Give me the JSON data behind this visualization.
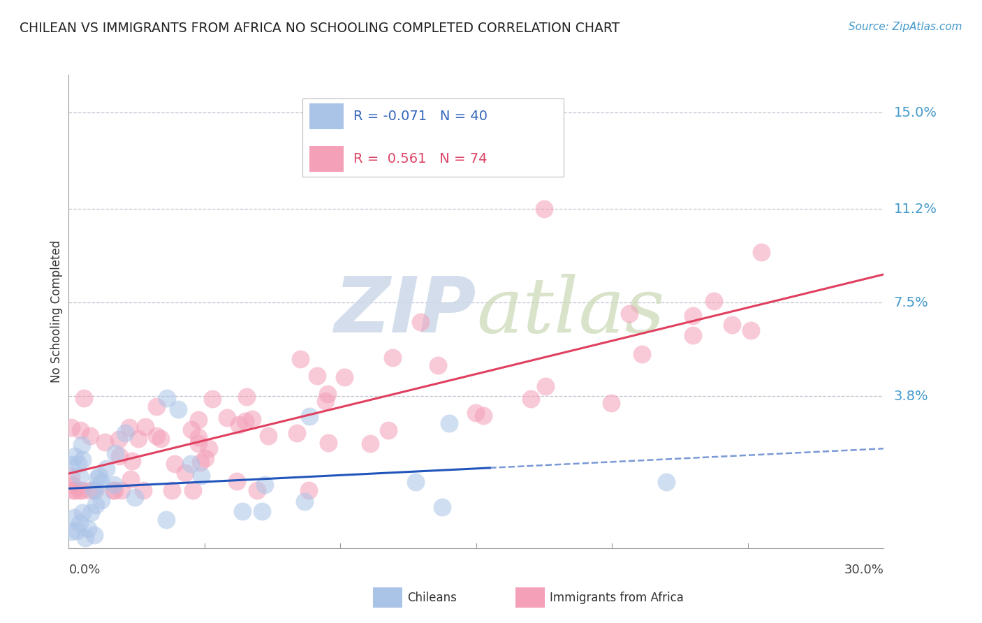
{
  "title": "CHILEAN VS IMMIGRANTS FROM AFRICA NO SCHOOLING COMPLETED CORRELATION CHART",
  "source": "Source: ZipAtlas.com",
  "ylabel": "No Schooling Completed",
  "ytick_labels": [
    "15.0%",
    "11.2%",
    "7.5%",
    "3.8%"
  ],
  "ytick_values": [
    0.15,
    0.112,
    0.075,
    0.038
  ],
  "xmin": 0.0,
  "xmax": 0.3,
  "ymin": -0.022,
  "ymax": 0.165,
  "chilean_color": "#aac4e8",
  "africa_color": "#f4a0b8",
  "chilean_line_color": "#2255bb",
  "africa_line_color": "#e04060",
  "chilean_r": -0.071,
  "africa_r": 0.561,
  "chilean_n": 40,
  "africa_n": 74,
  "background_color": "#ffffff",
  "grid_color": "#bbbbcc",
  "watermark_zip_color": "#ccd8e8",
  "watermark_atlas_color": "#c8d8b4"
}
